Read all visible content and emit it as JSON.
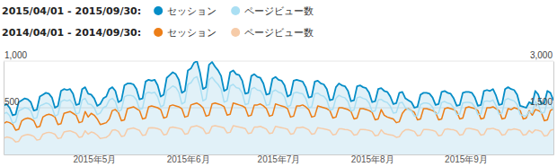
{
  "chart_data": {
    "type": "line",
    "periods": [
      "2015/04/01 - 2015/09/30:",
      "2014/04/01 - 2014/09/30:"
    ],
    "legend": "top-left",
    "grid": true,
    "categories": [
      null,
      null,
      null,
      null,
      null,
      null,
      null,
      null,
      null,
      null,
      null,
      null,
      null,
      null,
      null,
      null,
      null,
      null,
      null,
      null,
      null,
      null,
      null,
      null,
      null,
      null,
      null,
      null,
      null,
      null,
      "2015年5月",
      null,
      null,
      null,
      null,
      null,
      null,
      null,
      null,
      null,
      null,
      null,
      null,
      null,
      null,
      null,
      null,
      null,
      null,
      null,
      null,
      null,
      null,
      null,
      null,
      null,
      null,
      null,
      null,
      null,
      null,
      "2015年6月",
      null,
      null,
      null,
      null,
      null,
      null,
      null,
      null,
      null,
      null,
      null,
      null,
      null,
      null,
      null,
      null,
      null,
      null,
      null,
      null,
      null,
      null,
      null,
      null,
      null,
      null,
      null,
      null,
      null,
      "2015年7月",
      null,
      null,
      null,
      null,
      null,
      null,
      null,
      null,
      null,
      null,
      null,
      null,
      null,
      null,
      null,
      null,
      null,
      null,
      null,
      null,
      null,
      null,
      null,
      null,
      null,
      null,
      null,
      null,
      null,
      null,
      "2015年8月",
      null,
      null,
      null,
      null,
      null,
      null,
      null,
      null,
      null,
      null,
      null,
      null,
      null,
      null,
      null,
      null,
      null,
      null,
      null,
      null,
      null,
      null,
      null,
      null,
      null,
      null,
      null,
      null,
      null,
      null,
      "2015年9月",
      null,
      null,
      null,
      null,
      null,
      null,
      null,
      null,
      null,
      null,
      null,
      null,
      null,
      null,
      null,
      null,
      null,
      null,
      null,
      null,
      null,
      null,
      null,
      null,
      null,
      null,
      null,
      null,
      null
    ],
    "ylim": [
      0,
      1000
    ],
    "yticks": [
      500,
      {
        "value": 1000,
        "label": "1,000"
      }
    ],
    "y2lim": [
      0,
      3000
    ],
    "y2ticks": [
      {
        "value": 1500,
        "label": "1,500"
      },
      {
        "value": 3000,
        "label": "3,000"
      }
    ],
    "series": [
      {
        "name": "セッション",
        "color": "#058dc7",
        "type": "area",
        "values": [
          520,
          540,
          500,
          420,
          430,
          560,
          580,
          600,
          590,
          560,
          470,
          480,
          620,
          640,
          660,
          650,
          610,
          500,
          520,
          680,
          700,
          690,
          700,
          650,
          530,
          540,
          700,
          720,
          650,
          640,
          600,
          520,
          540,
          600,
          620,
          700,
          720,
          680,
          560,
          580,
          740,
          760,
          760,
          750,
          700,
          590,
          600,
          780,
          800,
          790,
          800,
          740,
          620,
          640,
          820,
          850,
          880,
          860,
          800,
          660,
          680,
          900,
          920,
          980,
          1000,
          880,
          700,
          720,
          960,
          990,
          940,
          900,
          840,
          680,
          700,
          880,
          900,
          860,
          850,
          790,
          650,
          660,
          840,
          860,
          830,
          820,
          760,
          640,
          650,
          810,
          830,
          800,
          790,
          740,
          620,
          640,
          790,
          800,
          790,
          780,
          720,
          610,
          620,
          780,
          790,
          760,
          750,
          700,
          580,
          590,
          720,
          760,
          740,
          730,
          680,
          570,
          580,
          730,
          740,
          720,
          710,
          660,
          560,
          570,
          700,
          710,
          680,
          670,
          620,
          540,
          550,
          660,
          670,
          600,
          580,
          560,
          500,
          510,
          640,
          660,
          660,
          650,
          610,
          530,
          540,
          670,
          680,
          660,
          650,
          600,
          520,
          530,
          660,
          670,
          670,
          660,
          610,
          520,
          530,
          680,
          690,
          680,
          700,
          630,
          530,
          540,
          700,
          720,
          700,
          690,
          640,
          520,
          510,
          500,
          560,
          540,
          680,
          640,
          540,
          550,
          680,
          660,
          580
        ]
      },
      {
        "name": "ページビュー数",
        "color": "#aadff3",
        "type": "line",
        "axis": "y2",
        "values": [
          1300,
          1350,
          1250,
          1000,
          1050,
          1400,
          1450,
          1500,
          1480,
          1400,
          1150,
          1180,
          1560,
          1600,
          1650,
          1620,
          1520,
          1230,
          1280,
          1700,
          1750,
          1720,
          1750,
          1620,
          1300,
          1330,
          1750,
          1800,
          1620,
          1600,
          1500,
          1280,
          1330,
          1500,
          1550,
          1750,
          1800,
          1700,
          1380,
          1430,
          1850,
          1900,
          1900,
          1870,
          1750,
          1450,
          1480,
          1950,
          2000,
          1970,
          2000,
          1850,
          1530,
          1580,
          2050,
          2120,
          2200,
          2150,
          2000,
          1620,
          1680,
          2250,
          2300,
          2450,
          2500,
          2200,
          1720,
          1780,
          2400,
          2480,
          2350,
          2250,
          2100,
          1680,
          1720,
          2200,
          2250,
          2150,
          2120,
          1970,
          1600,
          1630,
          2100,
          2150,
          2070,
          2050,
          1900,
          1580,
          1600,
          2020,
          2070,
          2000,
          1970,
          1850,
          1530,
          1580,
          1970,
          2000,
          1970,
          1950,
          1800,
          1500,
          1530,
          1950,
          1970,
          1900,
          1870,
          1750,
          1430,
          1450,
          1800,
          1900,
          1850,
          1820,
          1700,
          1400,
          1430,
          1820,
          1850,
          1800,
          1770,
          1650,
          1380,
          1400,
          1750,
          1770,
          1700,
          1670,
          1550,
          1330,
          1350,
          1650,
          1670,
          1500,
          1450,
          1400,
          1230,
          1250,
          1600,
          1650,
          1650,
          1620,
          1520,
          1300,
          1330,
          1670,
          1700,
          1650,
          1620,
          1500,
          1280,
          1300,
          1650,
          1670,
          1670,
          1650,
          1520,
          1280,
          1300,
          1700,
          1720,
          1700,
          1750,
          1570,
          1300,
          1330,
          1750,
          1800,
          1750,
          1720,
          1600,
          1280,
          1250,
          1230,
          1380,
          1330,
          1700,
          1600,
          1330,
          1350,
          1700,
          1650,
          1430
        ]
      },
      {
        "name": "セッション",
        "color": "#ed7e17",
        "type": "line",
        "values": [
          330,
          350,
          340,
          320,
          260,
          270,
          360,
          380,
          390,
          380,
          360,
          290,
          300,
          400,
          420,
          430,
          420,
          400,
          320,
          330,
          440,
          450,
          460,
          440,
          420,
          340,
          350,
          460,
          400,
          440,
          420,
          380,
          320,
          330,
          340,
          380,
          470,
          480,
          450,
          360,
          370,
          490,
          500,
          510,
          490,
          470,
          380,
          390,
          510,
          520,
          510,
          500,
          480,
          390,
          400,
          520,
          530,
          520,
          510,
          490,
          400,
          410,
          530,
          540,
          550,
          530,
          500,
          410,
          420,
          540,
          550,
          540,
          530,
          510,
          420,
          430,
          550,
          540,
          530,
          520,
          500,
          410,
          420,
          530,
          530,
          540,
          520,
          490,
          410,
          420,
          540,
          530,
          520,
          510,
          490,
          400,
          410,
          520,
          520,
          530,
          510,
          480,
          400,
          410,
          520,
          510,
          500,
          490,
          470,
          390,
          400,
          500,
          500,
          490,
          480,
          460,
          380,
          390,
          490,
          490,
          480,
          470,
          450,
          370,
          380,
          480,
          420,
          400,
          390,
          380,
          340,
          350,
          440,
          480,
          490,
          470,
          450,
          370,
          380,
          490,
          490,
          480,
          470,
          450,
          370,
          380,
          490,
          500,
          490,
          480,
          460,
          380,
          390,
          500,
          510,
          500,
          490,
          470,
          380,
          390,
          500,
          500,
          510,
          490,
          470,
          380,
          390,
          490,
          480,
          500,
          490,
          470,
          380,
          390,
          470,
          420,
          480,
          470,
          450,
          360,
          370,
          470,
          490
        ]
      },
      {
        "name": "ページビュー数",
        "color": "#f6cba8",
        "type": "line",
        "axis": "y2",
        "values": [
          520,
          560,
          540,
          500,
          400,
          420,
          580,
          620,
          640,
          620,
          580,
          460,
          480,
          650,
          690,
          710,
          690,
          650,
          510,
          530,
          720,
          740,
          760,
          720,
          680,
          550,
          570,
          760,
          650,
          720,
          690,
          620,
          510,
          530,
          550,
          620,
          780,
          790,
          740,
          580,
          600,
          810,
          830,
          850,
          810,
          770,
          610,
          630,
          850,
          860,
          850,
          830,
          790,
          630,
          650,
          860,
          880,
          860,
          840,
          810,
          650,
          670,
          880,
          900,
          920,
          880,
          830,
          670,
          690,
          900,
          920,
          900,
          880,
          850,
          690,
          710,
          920,
          900,
          880,
          860,
          830,
          670,
          690,
          880,
          880,
          900,
          860,
          810,
          670,
          690,
          900,
          880,
          860,
          840,
          810,
          650,
          670,
          860,
          860,
          880,
          840,
          790,
          650,
          670,
          860,
          840,
          820,
          800,
          770,
          630,
          650,
          820,
          820,
          800,
          790,
          750,
          620,
          640,
          800,
          800,
          790,
          770,
          740,
          600,
          620,
          790,
          680,
          650,
          630,
          610,
          550,
          570,
          720,
          790,
          800,
          770,
          740,
          600,
          620,
          800,
          800,
          790,
          770,
          740,
          600,
          620,
          800,
          820,
          800,
          790,
          750,
          620,
          640,
          820,
          840,
          820,
          800,
          770,
          620,
          640,
          820,
          820,
          840,
          800,
          770,
          620,
          640,
          800,
          790,
          820,
          800,
          770,
          620,
          640,
          770,
          690,
          790,
          770,
          740,
          590,
          610,
          770,
          800
        ]
      }
    ]
  }
}
